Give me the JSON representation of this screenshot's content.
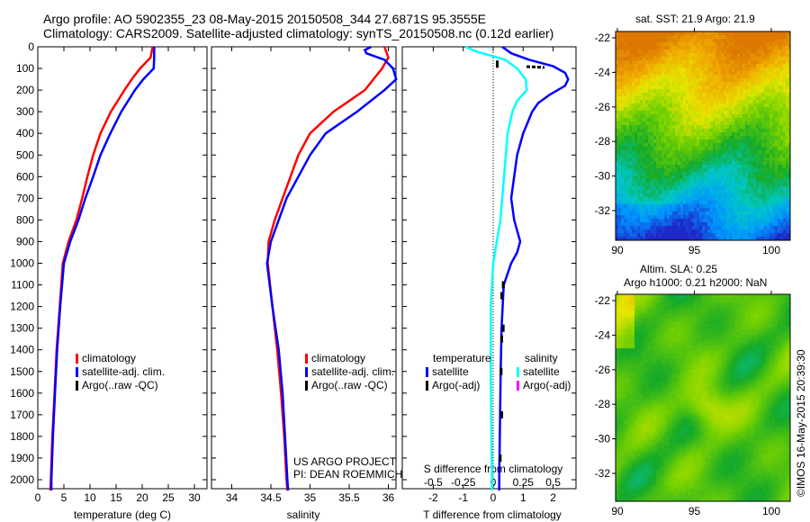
{
  "header": {
    "line1": "Argo profile: AO 5902355_23 08-May-2015 20150508_344 27.6871S 95.3555E",
    "line2": "Climatology: CARS2009. Satellite-adjusted climatology: synTS_20150508.nc (0.12d earlier)"
  },
  "colors": {
    "climatology": "#ff0000",
    "satellite": "#0000ff",
    "argo": "#000000",
    "sal_sat": "#00ffff",
    "sal_argo": "#ff00ff"
  },
  "credit": "©IMOS 16-May-2015 20:39:30",
  "chart_data": [
    {
      "type": "line",
      "name": "temperature",
      "xlabel": "temperature (deg C)",
      "xlim": [
        -1,
        32
      ],
      "ylim": [
        2060,
        0
      ],
      "xticks": [
        0,
        5,
        10,
        15,
        20,
        25,
        30
      ],
      "yticks": [
        0,
        100,
        200,
        300,
        400,
        500,
        600,
        700,
        800,
        900,
        1000,
        1100,
        1200,
        1300,
        1400,
        1500,
        1600,
        1700,
        1800,
        1900,
        2000
      ],
      "legend": [
        "climatology",
        "satellite-adj. clim.",
        "Argo(..raw -QC)"
      ],
      "series": [
        {
          "name": "climatology",
          "color": "#ff0000",
          "depth": [
            0,
            50,
            100,
            150,
            200,
            300,
            400,
            500,
            600,
            700,
            800,
            900,
            1000,
            1200,
            1400,
            1600,
            1800,
            2000,
            2050
          ],
          "values": [
            22,
            21.6,
            19.6,
            18,
            16.6,
            14,
            12,
            10.6,
            9.5,
            8.5,
            7.4,
            5.9,
            4.8,
            4.2,
            3.6,
            3.2,
            2.8,
            2.5,
            2.4
          ]
        },
        {
          "name": "satellite-adj. clim.",
          "color": "#0000ff",
          "depth": [
            0,
            50,
            100,
            150,
            200,
            300,
            400,
            500,
            600,
            700,
            800,
            900,
            1000,
            1200,
            1400,
            1600,
            1800,
            2000,
            2050
          ],
          "values": [
            22.3,
            22.3,
            22.2,
            20.2,
            18.6,
            16,
            13.9,
            12,
            10.6,
            9.1,
            7.8,
            6.2,
            5,
            4.3,
            3.7,
            3.3,
            2.9,
            2.6,
            2.6
          ]
        }
      ],
      "annotation": ""
    },
    {
      "type": "line",
      "name": "salinity",
      "xlabel": "salinity",
      "xlim": [
        33.8,
        36.1
      ],
      "ylim": [
        2060,
        0
      ],
      "xticks": [
        34,
        34.5,
        35,
        35.5,
        36
      ],
      "legend": [
        "climatology",
        "satellite-adj. clim.",
        "Argo(..raw -QC)"
      ],
      "annotation": [
        "US ARGO PROJECT",
        "PI: DEAN ROEMMICH"
      ],
      "series": [
        {
          "name": "climatology",
          "color": "#ff0000",
          "depth": [
            0,
            50,
            100,
            200,
            300,
            400,
            500,
            600,
            700,
            800,
            900,
            1000,
            1200,
            1400,
            1600,
            1800,
            2000,
            2050
          ],
          "values": [
            35.95,
            36.0,
            35.92,
            35.7,
            35.3,
            35.0,
            34.85,
            34.75,
            34.65,
            34.55,
            34.47,
            34.46,
            34.52,
            34.58,
            34.63,
            34.67,
            34.7,
            34.71
          ]
        },
        {
          "name": "satellite-adj. clim.",
          "color": "#0000ff",
          "depth": [
            0,
            15,
            30,
            60,
            100,
            150,
            200,
            300,
            400,
            500,
            600,
            700,
            800,
            900,
            1000,
            1200,
            1400,
            1600,
            1800,
            2000,
            2050
          ],
          "values": [
            35.78,
            35.7,
            35.72,
            35.95,
            36.06,
            36.1,
            35.95,
            35.6,
            35.2,
            35.0,
            34.85,
            34.7,
            34.6,
            34.5,
            34.45,
            34.52,
            34.6,
            34.65,
            34.68,
            34.71,
            34.72
          ]
        }
      ]
    },
    {
      "type": "line",
      "name": "difference",
      "xlabel": "T difference from climatology",
      "x2label": "S difference from climatology",
      "xlim": [
        -3,
        3
      ],
      "ylim": [
        2060,
        0
      ],
      "xticks": [
        -2,
        -1,
        0,
        1,
        2
      ],
      "x2ticks": [
        -0.5,
        -0.25,
        0,
        0.25,
        0.5
      ],
      "legend": {
        "temperature": "temperature",
        "salinity": "salinity",
        "satellite": "satellite",
        "argo": "Argo(-adj)"
      },
      "series": [
        {
          "name": "T satellite",
          "color": "#0000ff",
          "depth": [
            0,
            30,
            60,
            90,
            120,
            150,
            180,
            220,
            260,
            300,
            400,
            500,
            600,
            700,
            800,
            900,
            950,
            1000,
            1100,
            1300,
            1500,
            2000,
            2050
          ],
          "values": [
            0.3,
            0.6,
            1.2,
            2.0,
            2.4,
            2.5,
            2.4,
            1.9,
            1.5,
            1.3,
            1.0,
            0.8,
            0.7,
            0.6,
            0.7,
            0.9,
            0.8,
            0.6,
            0.35,
            0.28,
            0.25,
            0.2,
            0.2
          ]
        },
        {
          "name": "S satellite",
          "color": "#00ffff",
          "depth": [
            0,
            20,
            60,
            100,
            150,
            200,
            250,
            300,
            400,
            600,
            800,
            900,
            1000,
            1200,
            1500,
            2000,
            2050
          ],
          "values": [
            -0.23,
            -0.15,
            0.1,
            0.2,
            0.27,
            0.28,
            0.2,
            0.16,
            0.12,
            0.09,
            0.06,
            0.03,
            0,
            -0.02,
            -0.02,
            -0.01,
            -0.01
          ]
        },
        {
          "name": "T Argo",
          "color": "#000000",
          "depth": [
            80,
            1100,
            1150,
            1300,
            1350,
            1500,
            1700,
            1900
          ],
          "values": [
            0.15,
            0.35,
            0.3,
            0.35,
            0.3,
            0.28,
            0.3,
            0.25
          ]
        }
      ]
    },
    {
      "type": "heatmap",
      "name": "sst-map",
      "title": "sat. SST: 21.9 Argo: 21.9",
      "xticks": [
        90,
        95,
        100
      ],
      "yticks": [
        -22,
        -24,
        -26,
        -28,
        -30,
        -32
      ]
    },
    {
      "type": "heatmap",
      "name": "sla-map",
      "title": [
        "Altim. SLA: 0.25",
        "Argo h1000: 0.21 h2000: NaN"
      ],
      "xticks": [
        90,
        95,
        100
      ],
      "yticks": [
        -22,
        -24,
        -26,
        -28,
        -30,
        -32
      ]
    }
  ]
}
